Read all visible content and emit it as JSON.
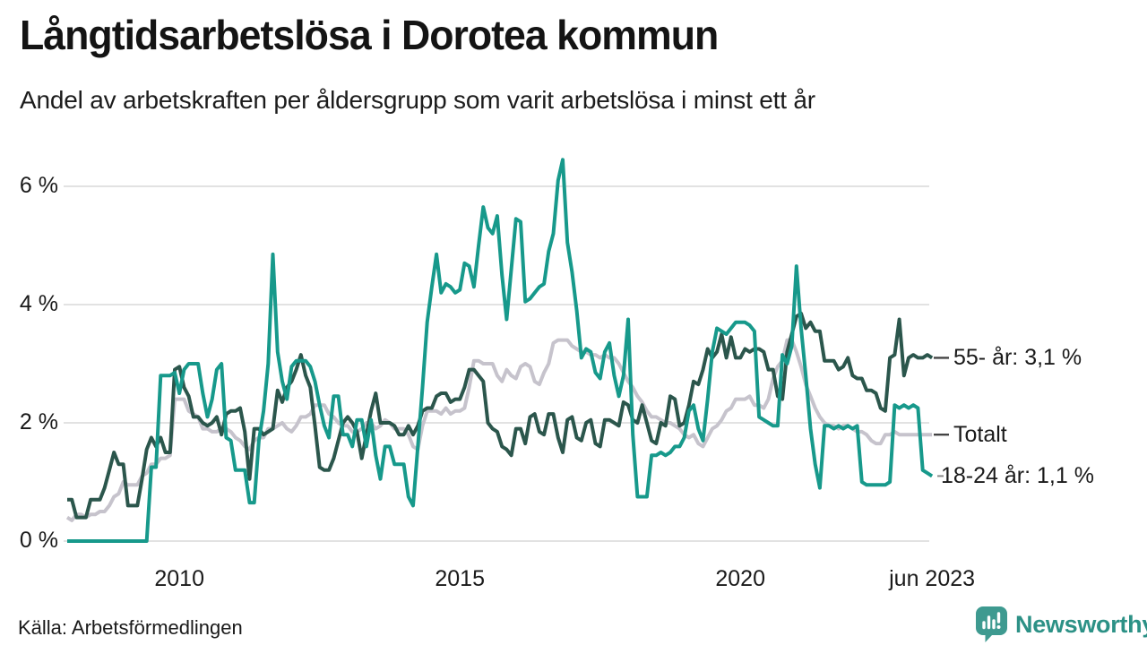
{
  "header": {
    "title": "Långtidsarbetslösa i Dorotea kommun",
    "subtitle": "Andel av arbetskraften per åldersgrupp som varit arbetslösa i minst ett år"
  },
  "footer": {
    "source": "Källa: Arbetsförmedlingen",
    "brand_name": "Newsworthy"
  },
  "colors": {
    "brand_teal": "#2c9186",
    "logo_bubble": "#3e9a90",
    "grid": "#d9d9d9",
    "text": "#1a1a1a",
    "connector": "#444444"
  },
  "chart_data": {
    "type": "line",
    "title": "Långtidsarbetslösa i Dorotea kommun",
    "subtitle": "Andel av arbetskraften per åldersgrupp som varit arbetslösa i minst ett år",
    "unit": "%",
    "grid": true,
    "legend_position": "end-of-line-labels",
    "x_range": [
      2008.0,
      2023.5
    ],
    "ylim": [
      0,
      6.6
    ],
    "start_month": "2008-01",
    "end_month": "2023-06",
    "x_ticks": [
      {
        "label": "2010",
        "year": 2010.0
      },
      {
        "label": "2015",
        "year": 2015.0
      },
      {
        "label": "2020",
        "year": 2020.0
      },
      {
        "label": "jun 2023",
        "year": 2023.4167
      }
    ],
    "y_ticks": [
      {
        "label": "0 %",
        "value": 0
      },
      {
        "label": "2 %",
        "value": 2
      },
      {
        "label": "4 %",
        "value": 4
      },
      {
        "label": "6 %",
        "value": 6
      }
    ],
    "series": [
      {
        "name": "Totalt",
        "end_label": "Totalt",
        "end_value": 1.8,
        "color": "#c6c3cc",
        "values": [
          0.4,
          0.35,
          0.45,
          0.45,
          0.4,
          0.45,
          0.45,
          0.5,
          0.5,
          0.6,
          0.75,
          0.8,
          1.0,
          0.95,
          0.95,
          0.95,
          1.1,
          1.15,
          1.3,
          1.3,
          1.4,
          1.4,
          1.45,
          2.4,
          2.4,
          2.4,
          2.2,
          2.15,
          2.1,
          1.9,
          1.9,
          1.85,
          1.85,
          1.9,
          1.9,
          1.85,
          1.75,
          1.7,
          1.6,
          1.55,
          1.7,
          1.75,
          1.75,
          1.9,
          1.9,
          1.95,
          2.0,
          1.9,
          1.85,
          1.95,
          2.1,
          2.1,
          2.15,
          2.3,
          2.3,
          2.3,
          2.15,
          2.1,
          2.0,
          1.95,
          1.95,
          1.85,
          1.85,
          1.9,
          2.0,
          2.0,
          1.9,
          1.95,
          2.05,
          2.0,
          1.9,
          1.9,
          1.9,
          1.8,
          1.6,
          1.55,
          1.95,
          2.2,
          2.2,
          2.2,
          2.15,
          2.25,
          2.15,
          2.2,
          2.2,
          2.25,
          2.6,
          3.05,
          3.05,
          3.0,
          3.0,
          3.0,
          2.8,
          2.7,
          2.9,
          2.8,
          2.75,
          2.95,
          3.0,
          2.95,
          2.7,
          2.65,
          2.85,
          3.0,
          3.35,
          3.4,
          3.4,
          3.4,
          3.3,
          3.25,
          3.2,
          3.2,
          3.15,
          3.15,
          3.1,
          3.15,
          3.1,
          3.1,
          3.0,
          2.85,
          2.7,
          2.6,
          2.45,
          2.35,
          2.2,
          2.1,
          2.1,
          2.05,
          2.0,
          2.0,
          1.95,
          1.9,
          1.8,
          1.75,
          1.8,
          1.65,
          1.6,
          1.75,
          1.9,
          1.95,
          2.05,
          2.2,
          2.25,
          2.4,
          2.4,
          2.4,
          2.45,
          2.3,
          2.3,
          2.25,
          2.4,
          2.75,
          2.95,
          3.05,
          3.4,
          3.4,
          3.2,
          2.95,
          2.65,
          2.45,
          2.25,
          2.1,
          2.0,
          1.95,
          1.95,
          1.9,
          1.95,
          1.95,
          1.9,
          1.85,
          1.85,
          1.8,
          1.7,
          1.65,
          1.65,
          1.8,
          1.8,
          1.85,
          1.8,
          1.8,
          1.8,
          1.8,
          1.8,
          1.8,
          1.8,
          1.8
        ]
      },
      {
        "name": "55- år",
        "end_label": "55- år: 3,1 %",
        "end_value": 3.1,
        "color": "#2b564c",
        "values": [
          0.7,
          0.7,
          0.4,
          0.4,
          0.4,
          0.7,
          0.7,
          0.7,
          0.9,
          1.2,
          1.5,
          1.3,
          1.3,
          0.6,
          0.6,
          0.6,
          1.05,
          1.55,
          1.75,
          1.6,
          1.75,
          1.5,
          1.5,
          2.9,
          2.95,
          2.6,
          2.45,
          2.1,
          2.1,
          2.0,
          1.95,
          2.0,
          2.1,
          1.8,
          2.15,
          2.2,
          2.2,
          2.25,
          1.85,
          1.05,
          1.9,
          1.9,
          1.8,
          1.85,
          1.9,
          2.55,
          2.35,
          2.6,
          2.7,
          2.9,
          3.15,
          2.8,
          2.6,
          1.95,
          1.25,
          1.2,
          1.2,
          1.4,
          1.7,
          2.0,
          2.1,
          2.0,
          1.85,
          1.4,
          1.8,
          2.2,
          2.5,
          2.0,
          2.0,
          2.0,
          1.95,
          1.8,
          1.8,
          1.95,
          1.8,
          1.95,
          2.2,
          2.25,
          2.25,
          2.45,
          2.5,
          2.5,
          2.35,
          2.4,
          2.4,
          2.6,
          2.9,
          2.9,
          2.8,
          2.7,
          2.0,
          1.9,
          1.85,
          1.6,
          1.55,
          1.45,
          1.9,
          1.9,
          1.65,
          2.1,
          2.15,
          1.85,
          1.8,
          2.15,
          2.15,
          1.75,
          1.5,
          2.05,
          2.1,
          1.75,
          1.7,
          2.0,
          2.05,
          1.65,
          1.6,
          2.05,
          2.05,
          2.0,
          1.95,
          2.35,
          2.3,
          2.05,
          2.0,
          2.3,
          2.0,
          1.7,
          1.65,
          2.0,
          1.95,
          2.45,
          2.4,
          1.95,
          2.0,
          2.3,
          2.7,
          2.65,
          2.9,
          3.25,
          3.1,
          3.2,
          3.5,
          3.1,
          3.45,
          3.1,
          3.1,
          3.25,
          3.2,
          3.25,
          3.25,
          3.2,
          2.9,
          2.9,
          2.45,
          2.4,
          3.2,
          3.5,
          3.8,
          3.85,
          3.6,
          3.7,
          3.55,
          3.55,
          3.05,
          3.05,
          3.05,
          2.9,
          2.95,
          3.1,
          2.8,
          2.75,
          2.75,
          2.55,
          2.55,
          2.5,
          2.25,
          2.2,
          3.1,
          3.15,
          3.75,
          2.8,
          3.1,
          3.15,
          3.1,
          3.1,
          3.15,
          3.1
        ]
      },
      {
        "name": "18-24 år",
        "end_label": "18-24 år: 1,1 %",
        "end_value": 1.1,
        "color": "#17998b",
        "values": [
          0,
          0,
          0,
          0,
          0,
          0,
          0,
          0,
          0,
          0,
          0,
          0,
          0,
          0,
          0,
          0,
          0,
          0,
          1.25,
          1.25,
          2.8,
          2.8,
          2.8,
          2.85,
          2.5,
          2.9,
          3.0,
          3.0,
          3.0,
          2.5,
          2.1,
          2.4,
          2.9,
          3.0,
          1.75,
          1.7,
          1.2,
          1.2,
          1.2,
          0.65,
          0.65,
          1.7,
          2.2,
          3.0,
          4.85,
          3.2,
          2.7,
          2.4,
          2.95,
          3.05,
          3.05,
          3.05,
          2.95,
          2.7,
          2.3,
          1.95,
          1.75,
          2.45,
          2.45,
          1.8,
          1.8,
          1.6,
          2.05,
          2.05,
          1.6,
          2.05,
          1.45,
          1.05,
          1.6,
          1.6,
          1.3,
          1.3,
          1.3,
          0.75,
          0.6,
          1.6,
          2.6,
          3.7,
          4.3,
          4.85,
          4.2,
          4.35,
          4.3,
          4.2,
          4.25,
          4.7,
          4.65,
          4.3,
          5.0,
          5.65,
          5.3,
          5.2,
          5.5,
          4.5,
          3.75,
          4.6,
          5.45,
          5.4,
          4.05,
          4.1,
          4.2,
          4.3,
          4.35,
          4.9,
          5.2,
          6.1,
          6.45,
          5.05,
          4.55,
          3.9,
          3.1,
          3.25,
          3.2,
          2.85,
          2.75,
          3.2,
          3.35,
          2.8,
          2.45,
          2.8,
          3.75,
          1.8,
          0.75,
          0.75,
          0.75,
          1.45,
          1.45,
          1.5,
          1.45,
          1.5,
          1.6,
          1.6,
          1.75,
          2.2,
          2.3,
          1.9,
          1.7,
          2.4,
          3.2,
          3.6,
          3.55,
          3.5,
          3.6,
          3.7,
          3.7,
          3.7,
          3.65,
          3.55,
          2.1,
          2.05,
          2.0,
          1.95,
          1.95,
          3.15,
          3.0,
          3.3,
          4.65,
          3.6,
          2.8,
          1.9,
          1.3,
          0.9,
          1.95,
          1.95,
          1.9,
          1.95,
          1.9,
          1.95,
          1.9,
          1.95,
          1.0,
          0.95,
          0.95,
          0.95,
          0.95,
          0.95,
          1.0,
          2.3,
          2.25,
          2.3,
          2.25,
          2.3,
          2.25,
          1.2,
          1.15,
          1.1
        ]
      }
    ]
  }
}
